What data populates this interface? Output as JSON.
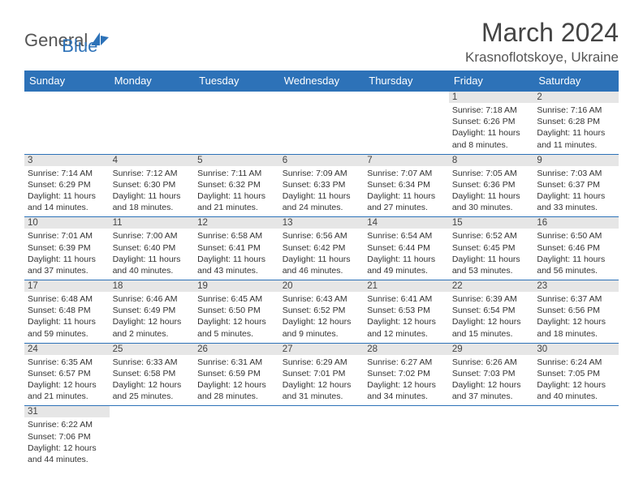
{
  "logo": {
    "text1": "General",
    "text2": "Blue"
  },
  "title": "March 2024",
  "location": "Krasnoflotskoye, Ukraine",
  "colors": {
    "header_bg": "#2d72b8",
    "header_fg": "#ffffff",
    "daynum_bg": "#e6e6e6",
    "rule": "#2d72b8",
    "text": "#333333"
  },
  "weekdays": [
    "Sunday",
    "Monday",
    "Tuesday",
    "Wednesday",
    "Thursday",
    "Friday",
    "Saturday"
  ],
  "weeks": [
    [
      null,
      null,
      null,
      null,
      null,
      {
        "d": "1",
        "sr": "7:18 AM",
        "ss": "6:26 PM",
        "dl1": "11 hours",
        "dl2": "and 8 minutes."
      },
      {
        "d": "2",
        "sr": "7:16 AM",
        "ss": "6:28 PM",
        "dl1": "11 hours",
        "dl2": "and 11 minutes."
      }
    ],
    [
      {
        "d": "3",
        "sr": "7:14 AM",
        "ss": "6:29 PM",
        "dl1": "11 hours",
        "dl2": "and 14 minutes."
      },
      {
        "d": "4",
        "sr": "7:12 AM",
        "ss": "6:30 PM",
        "dl1": "11 hours",
        "dl2": "and 18 minutes."
      },
      {
        "d": "5",
        "sr": "7:11 AM",
        "ss": "6:32 PM",
        "dl1": "11 hours",
        "dl2": "and 21 minutes."
      },
      {
        "d": "6",
        "sr": "7:09 AM",
        "ss": "6:33 PM",
        "dl1": "11 hours",
        "dl2": "and 24 minutes."
      },
      {
        "d": "7",
        "sr": "7:07 AM",
        "ss": "6:34 PM",
        "dl1": "11 hours",
        "dl2": "and 27 minutes."
      },
      {
        "d": "8",
        "sr": "7:05 AM",
        "ss": "6:36 PM",
        "dl1": "11 hours",
        "dl2": "and 30 minutes."
      },
      {
        "d": "9",
        "sr": "7:03 AM",
        "ss": "6:37 PM",
        "dl1": "11 hours",
        "dl2": "and 33 minutes."
      }
    ],
    [
      {
        "d": "10",
        "sr": "7:01 AM",
        "ss": "6:39 PM",
        "dl1": "11 hours",
        "dl2": "and 37 minutes."
      },
      {
        "d": "11",
        "sr": "7:00 AM",
        "ss": "6:40 PM",
        "dl1": "11 hours",
        "dl2": "and 40 minutes."
      },
      {
        "d": "12",
        "sr": "6:58 AM",
        "ss": "6:41 PM",
        "dl1": "11 hours",
        "dl2": "and 43 minutes."
      },
      {
        "d": "13",
        "sr": "6:56 AM",
        "ss": "6:42 PM",
        "dl1": "11 hours",
        "dl2": "and 46 minutes."
      },
      {
        "d": "14",
        "sr": "6:54 AM",
        "ss": "6:44 PM",
        "dl1": "11 hours",
        "dl2": "and 49 minutes."
      },
      {
        "d": "15",
        "sr": "6:52 AM",
        "ss": "6:45 PM",
        "dl1": "11 hours",
        "dl2": "and 53 minutes."
      },
      {
        "d": "16",
        "sr": "6:50 AM",
        "ss": "6:46 PM",
        "dl1": "11 hours",
        "dl2": "and 56 minutes."
      }
    ],
    [
      {
        "d": "17",
        "sr": "6:48 AM",
        "ss": "6:48 PM",
        "dl1": "11 hours",
        "dl2": "and 59 minutes."
      },
      {
        "d": "18",
        "sr": "6:46 AM",
        "ss": "6:49 PM",
        "dl1": "12 hours",
        "dl2": "and 2 minutes."
      },
      {
        "d": "19",
        "sr": "6:45 AM",
        "ss": "6:50 PM",
        "dl1": "12 hours",
        "dl2": "and 5 minutes."
      },
      {
        "d": "20",
        "sr": "6:43 AM",
        "ss": "6:52 PM",
        "dl1": "12 hours",
        "dl2": "and 9 minutes."
      },
      {
        "d": "21",
        "sr": "6:41 AM",
        "ss": "6:53 PM",
        "dl1": "12 hours",
        "dl2": "and 12 minutes."
      },
      {
        "d": "22",
        "sr": "6:39 AM",
        "ss": "6:54 PM",
        "dl1": "12 hours",
        "dl2": "and 15 minutes."
      },
      {
        "d": "23",
        "sr": "6:37 AM",
        "ss": "6:56 PM",
        "dl1": "12 hours",
        "dl2": "and 18 minutes."
      }
    ],
    [
      {
        "d": "24",
        "sr": "6:35 AM",
        "ss": "6:57 PM",
        "dl1": "12 hours",
        "dl2": "and 21 minutes."
      },
      {
        "d": "25",
        "sr": "6:33 AM",
        "ss": "6:58 PM",
        "dl1": "12 hours",
        "dl2": "and 25 minutes."
      },
      {
        "d": "26",
        "sr": "6:31 AM",
        "ss": "6:59 PM",
        "dl1": "12 hours",
        "dl2": "and 28 minutes."
      },
      {
        "d": "27",
        "sr": "6:29 AM",
        "ss": "7:01 PM",
        "dl1": "12 hours",
        "dl2": "and 31 minutes."
      },
      {
        "d": "28",
        "sr": "6:27 AM",
        "ss": "7:02 PM",
        "dl1": "12 hours",
        "dl2": "and 34 minutes."
      },
      {
        "d": "29",
        "sr": "6:26 AM",
        "ss": "7:03 PM",
        "dl1": "12 hours",
        "dl2": "and 37 minutes."
      },
      {
        "d": "30",
        "sr": "6:24 AM",
        "ss": "7:05 PM",
        "dl1": "12 hours",
        "dl2": "and 40 minutes."
      }
    ],
    [
      {
        "d": "31",
        "sr": "6:22 AM",
        "ss": "7:06 PM",
        "dl1": "12 hours",
        "dl2": "and 44 minutes."
      },
      null,
      null,
      null,
      null,
      null,
      null
    ]
  ],
  "labels": {
    "sunrise": "Sunrise: ",
    "sunset": "Sunset: ",
    "daylight": "Daylight: "
  }
}
